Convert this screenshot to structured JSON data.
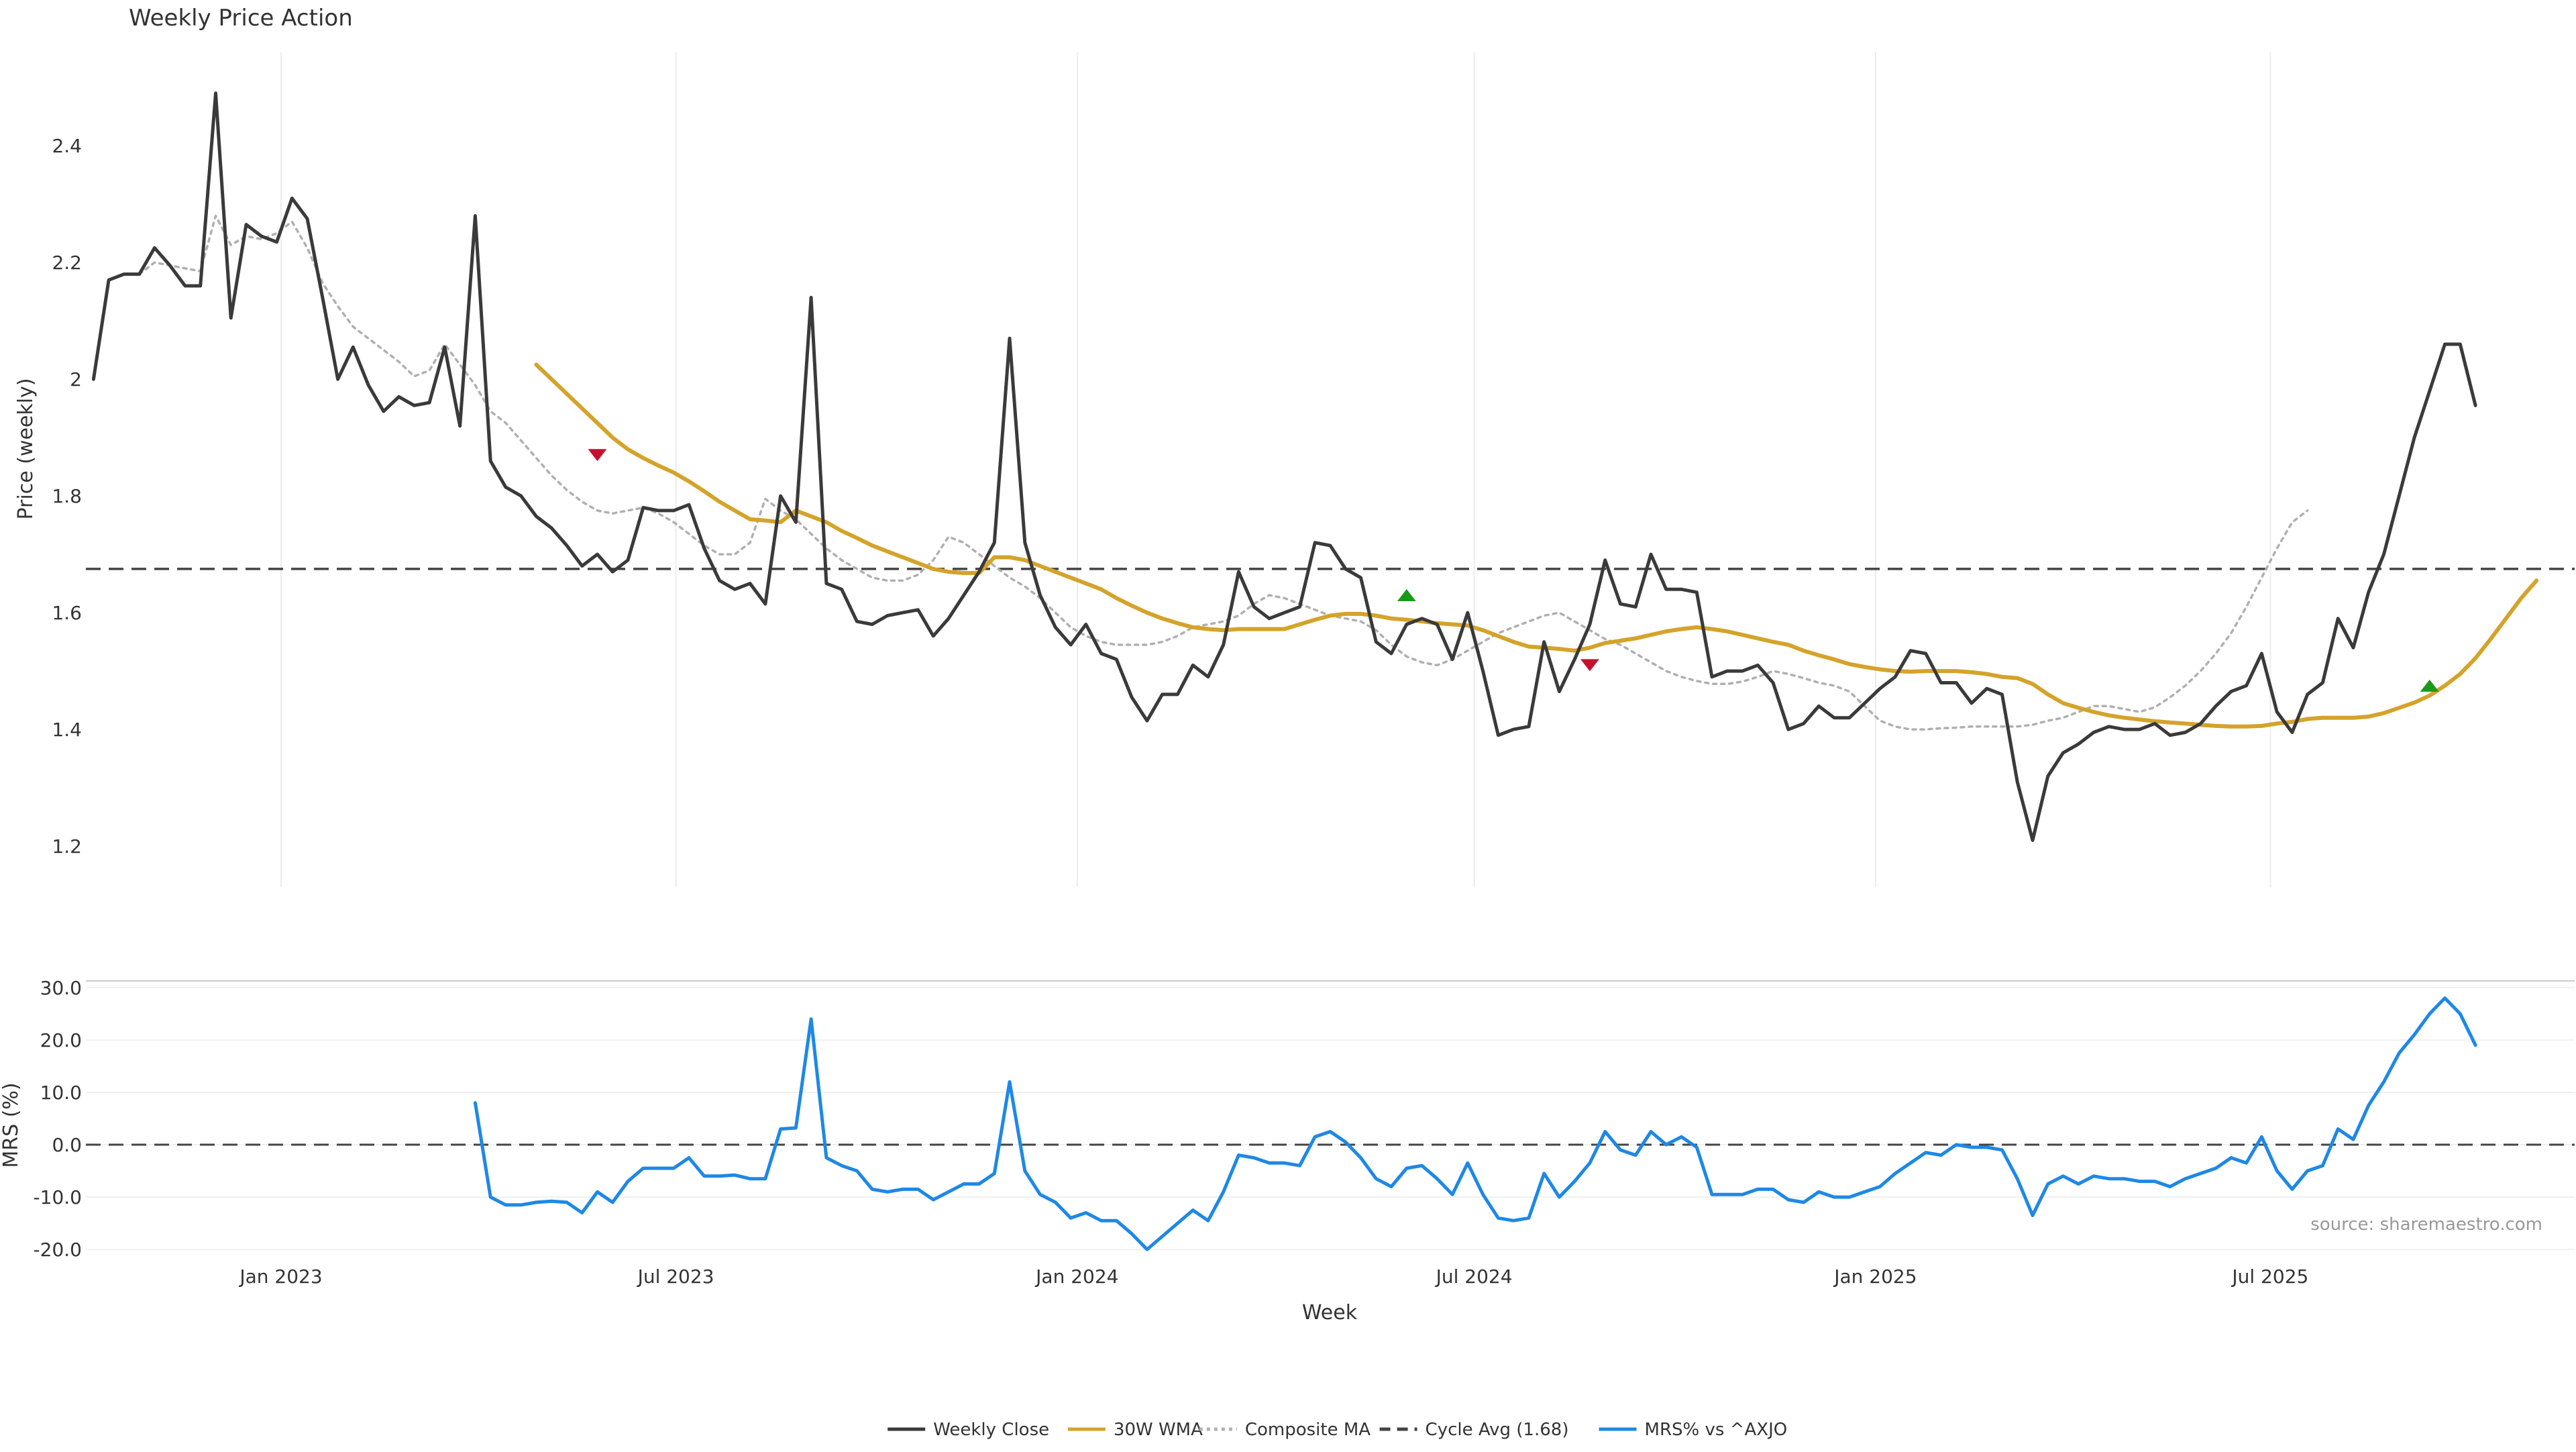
{
  "chart_data": [
    {
      "type": "line",
      "title": "Weekly Price Action",
      "xlabel": "",
      "ylabel": "Price (weekly)",
      "ylim": [
        1.13,
        2.56
      ],
      "yticks": [
        1.2,
        1.4,
        1.6,
        1.8,
        2.0,
        2.2,
        2.4
      ],
      "ytick_labels": [
        "1.2",
        "1.4",
        "1.6",
        "1.8",
        "2",
        "2.2",
        "2.4"
      ],
      "x_start": "2022-10-07",
      "x_step_days": 7,
      "x_end": "2025-11-14",
      "xticks": [
        "2023-01-01",
        "2023-07-01",
        "2024-01-01",
        "2024-07-01",
        "2025-01-01",
        "2025-07-01"
      ],
      "xtick_labels": [
        "Jan 2023",
        "Jul 2023",
        "Jan 2024",
        "Jul 2024",
        "Jan 2025",
        "Jul 2025"
      ],
      "grid": "x-only",
      "reference_line": {
        "name": "Cycle Avg (1.68)",
        "y": 1.675
      },
      "markers": [
        {
          "date": "2023-05-26",
          "y": 1.87,
          "kind": "sell",
          "shape": "triangle-down",
          "color": "#c8102e"
        },
        {
          "date": "2024-05-31",
          "y": 1.63,
          "kind": "buy",
          "shape": "triangle-up",
          "color": "#1a9a1a"
        },
        {
          "date": "2024-08-23",
          "y": 1.51,
          "kind": "sell",
          "shape": "triangle-down",
          "color": "#c8102e"
        },
        {
          "date": "2025-09-12",
          "y": 1.475,
          "kind": "buy",
          "shape": "triangle-up",
          "color": "#1a9a1a"
        }
      ],
      "series": [
        {
          "name": "Weekly Close",
          "color": "#3a3a3a",
          "style": "solid",
          "values": [
            2.0,
            2.17,
            2.18,
            2.18,
            2.225,
            2.195,
            2.16,
            2.16,
            2.49,
            2.105,
            2.265,
            2.245,
            2.235,
            2.31,
            2.275,
            2.14,
            2.0,
            2.055,
            1.99,
            1.945,
            1.97,
            1.955,
            1.96,
            2.055,
            1.92,
            2.28,
            1.86,
            1.815,
            1.8,
            1.765,
            1.745,
            1.715,
            1.68,
            1.7,
            1.67,
            1.69,
            1.78,
            1.775,
            1.775,
            1.785,
            1.71,
            1.655,
            1.64,
            1.65,
            1.615,
            1.8,
            1.755,
            2.14,
            1.65,
            1.64,
            1.585,
            1.58,
            1.595,
            1.6,
            1.605,
            1.56,
            1.59,
            1.63,
            1.67,
            1.72,
            2.07,
            1.72,
            1.63,
            1.575,
            1.545,
            1.58,
            1.53,
            1.52,
            1.455,
            1.415,
            1.46,
            1.46,
            1.51,
            1.49,
            1.545,
            1.67,
            1.61,
            1.59,
            1.6,
            1.61,
            1.72,
            1.715,
            1.675,
            1.66,
            1.55,
            1.53,
            1.58,
            1.59,
            1.58,
            1.52,
            1.6,
            1.5,
            1.39,
            1.4,
            1.405,
            1.55,
            1.465,
            1.52,
            1.58,
            1.69,
            1.615,
            1.61,
            1.7,
            1.64,
            1.64,
            1.635,
            1.49,
            1.5,
            1.5,
            1.51,
            1.48,
            1.4,
            1.41,
            1.44,
            1.42,
            1.42,
            1.445,
            1.47,
            1.49,
            1.535,
            1.53,
            1.48,
            1.48,
            1.445,
            1.47,
            1.46,
            1.31,
            1.21,
            1.32,
            1.36,
            1.375,
            1.395,
            1.405,
            1.4,
            1.4,
            1.41,
            1.39,
            1.395,
            1.41,
            1.44,
            1.465,
            1.475,
            1.53,
            1.43,
            1.395,
            1.46,
            1.48,
            1.59,
            1.54,
            1.635,
            1.7,
            1.8,
            1.9,
            1.98,
            2.06,
            2.06,
            1.955
          ]
        },
        {
          "name": "30W WMA",
          "color": "#d4a32a",
          "style": "solid",
          "start_index": 29,
          "values": [
            2.025,
            2.0,
            1.975,
            1.95,
            1.925,
            1.9,
            1.88,
            1.865,
            1.852,
            1.84,
            1.825,
            1.808,
            1.79,
            1.775,
            1.76,
            1.758,
            1.755,
            1.775,
            1.765,
            1.755,
            1.74,
            1.728,
            1.715,
            1.705,
            1.695,
            1.685,
            1.675,
            1.67,
            1.668,
            1.668,
            1.695,
            1.695,
            1.69,
            1.68,
            1.67,
            1.66,
            1.65,
            1.64,
            1.625,
            1.612,
            1.6,
            1.59,
            1.582,
            1.575,
            1.572,
            1.57,
            1.572,
            1.572,
            1.572,
            1.572,
            1.58,
            1.588,
            1.595,
            1.598,
            1.598,
            1.595,
            1.59,
            1.588,
            1.585,
            1.582,
            1.58,
            1.578,
            1.57,
            1.56,
            1.55,
            1.542,
            1.54,
            1.538,
            1.535,
            1.54,
            1.548,
            1.552,
            1.556,
            1.562,
            1.568,
            1.572,
            1.575,
            1.572,
            1.568,
            1.562,
            1.556,
            1.55,
            1.545,
            1.535,
            1.527,
            1.52,
            1.512,
            1.507,
            1.503,
            1.5,
            1.499,
            1.5,
            1.5,
            1.5,
            1.498,
            1.495,
            1.49,
            1.488,
            1.478,
            1.46,
            1.445,
            1.437,
            1.43,
            1.424,
            1.42,
            1.417,
            1.414,
            1.412,
            1.41,
            1.408,
            1.406,
            1.405,
            1.405,
            1.406,
            1.41,
            1.413,
            1.418,
            1.42,
            1.42,
            1.42,
            1.422,
            1.428,
            1.437,
            1.446,
            1.458,
            1.475,
            1.495,
            1.522,
            1.555,
            1.59,
            1.625,
            1.655
          ]
        },
        {
          "name": "Composite MA",
          "color": "#b0b0b0",
          "style": "dotted",
          "start_index": 3,
          "values": [
            2.18,
            2.2,
            2.195,
            2.19,
            2.185,
            2.28,
            2.23,
            2.245,
            2.24,
            2.25,
            2.27,
            2.225,
            2.165,
            2.125,
            2.09,
            2.07,
            2.05,
            2.03,
            2.005,
            2.015,
            2.06,
            2.025,
            1.99,
            1.945,
            1.925,
            1.895,
            1.865,
            1.835,
            1.81,
            1.79,
            1.775,
            1.77,
            1.775,
            1.78,
            1.77,
            1.755,
            1.735,
            1.715,
            1.7,
            1.7,
            1.72,
            1.795,
            1.775,
            1.76,
            1.735,
            1.71,
            1.69,
            1.675,
            1.66,
            1.655,
            1.655,
            1.665,
            1.69,
            1.73,
            1.72,
            1.7,
            1.68,
            1.66,
            1.645,
            1.625,
            1.6,
            1.575,
            1.56,
            1.55,
            1.545,
            1.545,
            1.545,
            1.55,
            1.56,
            1.575,
            1.58,
            1.585,
            1.595,
            1.615,
            1.63,
            1.625,
            1.615,
            1.605,
            1.595,
            1.59,
            1.585,
            1.57,
            1.545,
            1.525,
            1.515,
            1.51,
            1.52,
            1.535,
            1.55,
            1.565,
            1.575,
            1.585,
            1.595,
            1.6,
            1.585,
            1.57,
            1.555,
            1.545,
            1.53,
            1.515,
            1.5,
            1.49,
            1.483,
            1.478,
            1.478,
            1.482,
            1.49,
            1.5,
            1.495,
            1.488,
            1.48,
            1.475,
            1.465,
            1.44,
            1.415,
            1.405,
            1.4,
            1.4,
            1.402,
            1.403,
            1.405,
            1.405,
            1.405,
            1.405,
            1.408,
            1.415,
            1.42,
            1.43,
            1.44,
            1.44,
            1.435,
            1.43,
            1.438,
            1.455,
            1.475,
            1.5,
            1.53,
            1.565,
            1.61,
            1.66,
            1.71,
            1.755,
            1.775
          ]
        }
      ]
    },
    {
      "type": "line",
      "title": "",
      "xlabel": "Week",
      "ylabel": "MRS (%)",
      "ylim": [
        -20.5,
        30.5
      ],
      "yticks": [
        -20,
        -10,
        0,
        10,
        20,
        30
      ],
      "ytick_labels": [
        "-20.0",
        "-10.0",
        "0.0",
        "10.0",
        "20.0",
        "30.0"
      ],
      "xticks": [
        "2023-01-01",
        "2023-07-01",
        "2024-01-01",
        "2024-07-01",
        "2025-01-01",
        "2025-07-01"
      ],
      "xtick_labels": [
        "Jan 2023",
        "Jul 2023",
        "Jan 2024",
        "Jul 2024",
        "Jan 2025",
        "Jul 2025"
      ],
      "grid": "y-only",
      "reference_line": {
        "y": 0
      },
      "annotation": "source: sharemaestro.com",
      "series": [
        {
          "name": "MRS% vs ^AXJO",
          "color": "#1e88e5",
          "style": "solid",
          "start_index": 25,
          "values": [
            8.0,
            -10.0,
            -11.5,
            -11.5,
            -11.0,
            -10.8,
            -11.0,
            -13.0,
            -9.0,
            -11.0,
            -7.0,
            -4.5,
            -4.5,
            -4.5,
            -2.5,
            -6.0,
            -6.0,
            -5.8,
            -6.5,
            -6.5,
            3.0,
            3.2,
            24.0,
            -2.5,
            -4.0,
            -5.0,
            -8.5,
            -9.0,
            -8.5,
            -8.5,
            -10.5,
            -9.0,
            -7.5,
            -7.5,
            -5.5,
            12.0,
            -5.0,
            -9.5,
            -11.0,
            -14.0,
            -13.0,
            -14.5,
            -14.5,
            -17.0,
            -20.0,
            -17.5,
            -15.0,
            -12.5,
            -14.5,
            -9.0,
            -2.0,
            -2.5,
            -3.5,
            -3.5,
            -4.0,
            1.5,
            2.5,
            0.5,
            -2.5,
            -6.5,
            -8.0,
            -4.5,
            -4.0,
            -6.5,
            -9.5,
            -3.5,
            -9.5,
            -14.0,
            -14.5,
            -14.0,
            -5.5,
            -10.0,
            -7.0,
            -3.5,
            2.5,
            -1.0,
            -2.0,
            2.5,
            0.0,
            1.5,
            -0.5,
            -9.5,
            -9.5,
            -9.5,
            -8.5,
            -8.5,
            -10.5,
            -11.0,
            -9.0,
            -10.0,
            -10.0,
            -9.0,
            -8.0,
            -5.5,
            -3.5,
            -1.5,
            -2.0,
            0.0,
            -0.5,
            -0.5,
            -1.0,
            -6.5,
            -13.5,
            -7.5,
            -6.0,
            -7.5,
            -6.0,
            -6.5,
            -6.5,
            -7.0,
            -7.0,
            -8.0,
            -6.5,
            -5.5,
            -4.5,
            -2.5,
            -3.5,
            1.5,
            -5.0,
            -8.5,
            -5.0,
            -4.0,
            3.0,
            1.0,
            7.5,
            12.0,
            17.5,
            21.0,
            25.0,
            28.0,
            25.0,
            19.0
          ]
        }
      ]
    }
  ],
  "legend": {
    "placement": "bottom-center",
    "items": [
      {
        "label": "Weekly Close",
        "color": "#3a3a3a",
        "style": "solid"
      },
      {
        "label": "30W WMA",
        "color": "#d4a32a",
        "style": "solid"
      },
      {
        "label": "Composite MA",
        "color": "#b0b0b0",
        "style": "dotted"
      },
      {
        "label": "Cycle Avg (1.68)",
        "color": "#444444",
        "style": "dashed"
      },
      {
        "label": "MRS% vs ^AXJO",
        "color": "#1e88e5",
        "style": "solid"
      }
    ]
  }
}
